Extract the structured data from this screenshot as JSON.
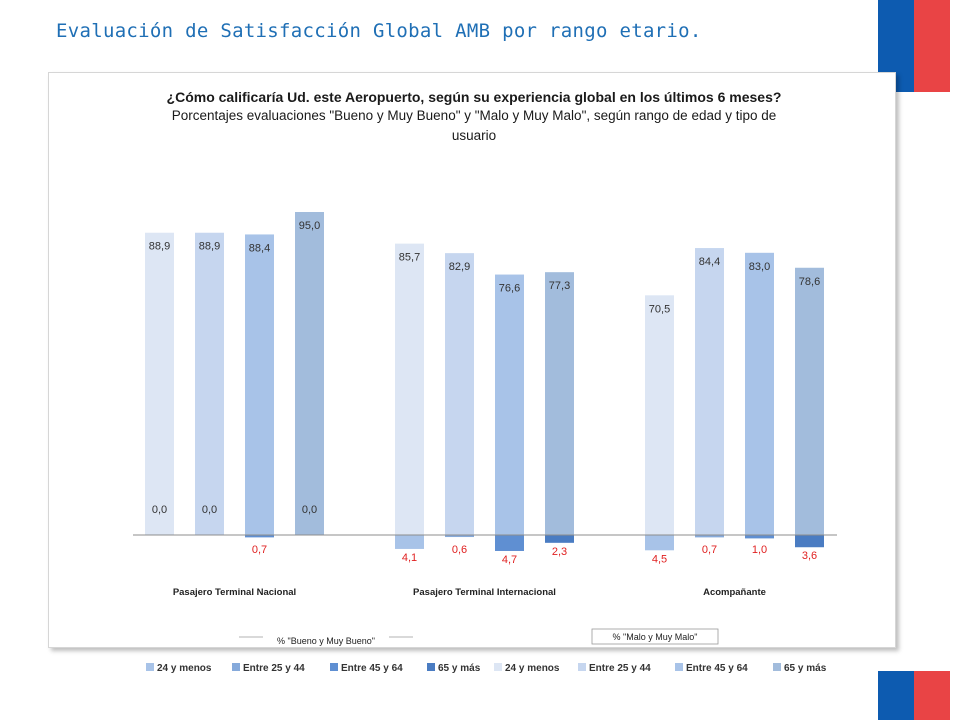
{
  "slide": {
    "title": "Evaluación de Satisfacción Global AMB por rango etario."
  },
  "chart_data": {
    "type": "bar",
    "title": "¿Cómo calificaría Ud. este Aeropuerto, según su experiencia global en los últimos 6 meses?",
    "subtitle": [
      "Porcentajes evaluaciones \"Bueno y Muy Bueno\" y \"Malo y Muy Malo\",  según rango de edad y tipo de",
      "usuario"
    ],
    "categories": [
      "Pasajero Terminal Nacional",
      "Pasajero Terminal Internacional",
      "Acompañante"
    ],
    "age_groups": [
      "24 y menos",
      "Entre 25 y 44",
      "Entre 45 y 64",
      "65 y más"
    ],
    "series": [
      {
        "name": "% \"Bueno y Muy Bueno\"",
        "values": [
          [
            88.9,
            88.9,
            88.4,
            95.0
          ],
          [
            85.7,
            82.9,
            76.6,
            77.3
          ],
          [
            70.5,
            84.4,
            83.0,
            78.6
          ]
        ],
        "labels": [
          [
            "88,9",
            "88,9",
            "88,4",
            "95,0"
          ],
          [
            "85,7",
            "82,9",
            "76,6",
            "77,3"
          ],
          [
            "70,5",
            "84,4",
            "83,0",
            "78,6"
          ]
        ]
      },
      {
        "name": "% \"Malo y Muy Malo\"",
        "values": [
          [
            0.0,
            0.0,
            0.7,
            0.0
          ],
          [
            4.1,
            0.6,
            4.7,
            2.3
          ],
          [
            4.5,
            0.7,
            1.0,
            3.6
          ]
        ],
        "labels": [
          [
            "0,0",
            "0,0",
            "0,7",
            "0,0"
          ],
          [
            "4,1",
            "0,6",
            "4,7",
            "2,3"
          ],
          [
            "4,5",
            "0,7",
            "1,0",
            "3,6"
          ]
        ]
      }
    ],
    "colors": {
      "good": [
        "#dde6f4",
        "#c6d6ef",
        "#a8c3e8",
        "#a2bcdc"
      ],
      "bad": [
        "#a8c3e8",
        "#86aadb",
        "#5f8fd2",
        "#4a7cc2"
      ],
      "neg_label": "#e02020"
    },
    "segment_labels": [
      "% \"Bueno y Muy Bueno\"",
      "% \"Malo y Muy Malo\""
    ],
    "legend": {
      "position": "bottom",
      "entries": [
        {
          "label": "24 y menos",
          "color": "#a8c3e8"
        },
        {
          "label": "Entre 25 y 44",
          "color": "#86aadb"
        },
        {
          "label": "Entre 45 y 64",
          "color": "#5f8fd2"
        },
        {
          "label": "65 y más",
          "color": "#4a7cc2"
        },
        {
          "label": "24 y menos",
          "color": "#dde6f4"
        },
        {
          "label": "Entre 25 y 44",
          "color": "#c6d6ef"
        },
        {
          "label": "Entre 45 y 64",
          "color": "#a8c3e8"
        },
        {
          "label": "65 y más",
          "color": "#a2bcdc"
        }
      ]
    },
    "grid": false
  }
}
